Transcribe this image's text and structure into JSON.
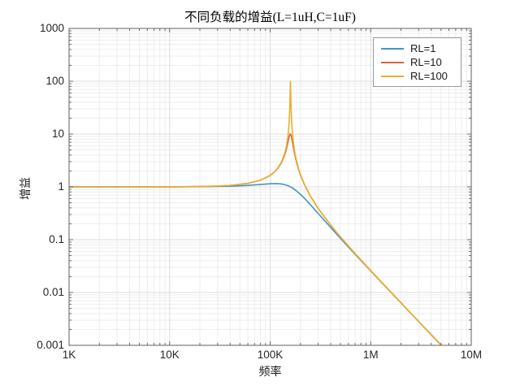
{
  "figure": {
    "title": "不同负载的增益(L=1uH,C=1uF)",
    "background": "#ffffff",
    "colors": {
      "grid_major": "#dcdcdc",
      "grid_minor": "#ededed",
      "axis_border": "#5f5f5f",
      "tick_mark": "#6b6b6b",
      "tick_label": "#262626"
    }
  },
  "axes": {
    "x": {
      "label": "频率",
      "scale": "log",
      "min": 1000,
      "max": 10000000,
      "tick_labels": [
        "1K",
        "10K",
        "100K",
        "1M",
        "10M"
      ]
    },
    "y": {
      "label": "增益",
      "scale": "log",
      "min": 0.001,
      "max": 1000,
      "tick_labels": [
        "1000",
        "100",
        "10",
        "1",
        "0.1",
        "0.01",
        "0.001"
      ]
    }
  },
  "legend": {
    "position": "northeast",
    "items": [
      {
        "label": "RL=1",
        "color": "#4693c8"
      },
      {
        "label": "RL=10",
        "color": "#d2693b"
      },
      {
        "label": "RL=100",
        "color": "#e9b02e"
      }
    ]
  },
  "chart_data": {
    "type": "line",
    "title": "不同负载的增益(L=1uH,C=1uF)",
    "xlabel": "频率",
    "ylabel": "增益",
    "x_scale": "log",
    "y_scale": "log",
    "xlim": [
      1000,
      10000000
    ],
    "ylim": [
      0.001,
      1000
    ],
    "grid": true,
    "minor_grid": true,
    "legend_position": "northeast",
    "x_kHz": [
      1,
      2,
      5,
      10,
      20,
      30,
      40,
      60,
      80,
      100,
      110,
      120,
      130,
      140,
      145,
      150,
      152,
      155,
      157,
      158,
      158.5,
      159,
      159.15,
      159.5,
      160,
      161,
      163,
      165,
      170,
      175,
      180,
      190,
      200,
      220,
      250,
      300,
      400,
      500,
      700,
      1000,
      2000,
      3000,
      5000,
      5200
    ],
    "series": [
      {
        "name": "RL=1",
        "color": "#4693c8",
        "values": [
          1.0,
          1.0001,
          1.0005,
          1.002,
          1.0079,
          1.0176,
          1.031,
          1.0672,
          1.1103,
          1.1463,
          1.1543,
          1.1511,
          1.1338,
          1.101,
          1.079,
          1.0537,
          1.0427,
          1.0254,
          1.0134,
          1.0072,
          1.0041,
          1.001,
          1.0,
          0.9978,
          0.9947,
          0.9883,
          0.9753,
          0.9621,
          0.9282,
          0.8935,
          0.8584,
          0.7891,
          0.7227,
          0.6041,
          0.4652,
          0.3151,
          0.17,
          0.1063,
          0.053,
          0.02565,
          0.006353,
          0.002818,
          0.001014,
          0.000937
        ]
      },
      {
        "name": "RL=10",
        "color": "#d2693b",
        "values": [
          1.0,
          1.0002,
          1.001,
          1.0039,
          1.016,
          1.0366,
          1.067,
          1.1645,
          1.3351,
          1.6435,
          1.898,
          2.2829,
          2.9181,
          4.1199,
          5.1856,
          6.8409,
          7.7049,
          9.0758,
          9.7802,
          9.9679,
          10.0073,
          10.0078,
          10.0,
          9.969,
          9.8919,
          9.6329,
          8.8112,
          7.8223,
          5.6552,
          4.234,
          3.3207,
          2.2644,
          1.6874,
          1.0856,
          0.6776,
          0.3906,
          0.1879,
          0.1127,
          0.0545,
          0.02599,
          0.006373,
          0.002822,
          0.001014,
          0.000938
        ]
      },
      {
        "name": "RL=100",
        "color": "#e9b02e",
        "values": [
          1.0,
          1.0002,
          1.001,
          1.004,
          1.016,
          1.0368,
          1.0674,
          1.1657,
          1.3381,
          1.6522,
          1.9144,
          2.3171,
          3.0038,
          4.4171,
          5.8749,
          8.918,
          11.312,
          19.068,
          34.905,
          57.012,
          77.46,
          98.245,
          100.0,
          91.567,
          68.301,
          39.346,
          20.015,
          13.243,
          7.0757,
          4.7774,
          3.58,
          2.3511,
          1.7263,
          1.0979,
          0.6814,
          0.3917,
          0.1881,
          0.1127,
          0.0545,
          0.02599,
          0.006373,
          0.002822,
          0.001014,
          0.000938
        ]
      }
    ]
  }
}
